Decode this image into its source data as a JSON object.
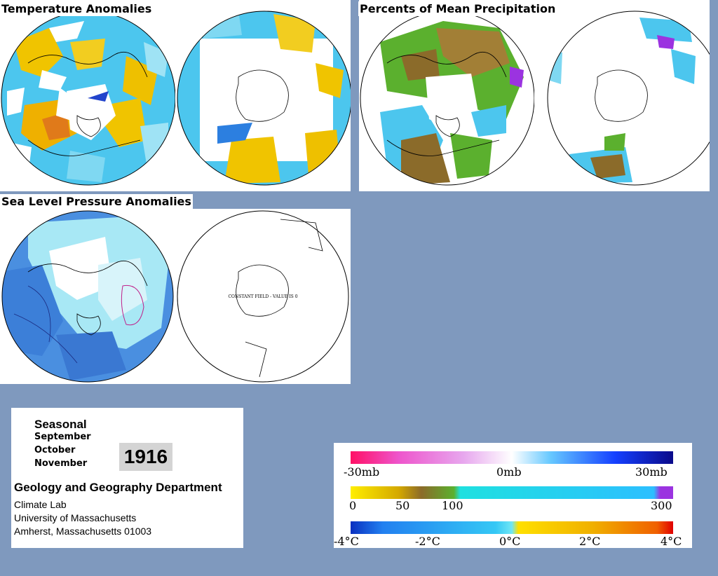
{
  "panels": {
    "temperature_title": "Temperature Anomalies",
    "precip_title": "Percents of Mean Precipitation",
    "slp_title": "Sea Level Pressure Anomalies",
    "constant_field_note": "CONSTANT FIELD - VALUE IS 0"
  },
  "info": {
    "season_label": "Seasonal",
    "months": [
      "September",
      "October",
      "November"
    ],
    "year": "1916",
    "department": "Geology and Geography Department",
    "lab": "Climate Lab",
    "university": "University of Massachusetts",
    "city": "Amherst, Massachusetts 01003"
  },
  "legend": {
    "pressure": {
      "labels": [
        "-30mb",
        "0mb",
        "30mb"
      ]
    },
    "precip": {
      "labels": [
        "0",
        "50",
        "100",
        "300"
      ]
    },
    "temperature": {
      "labels": [
        "-4°C",
        "-2°C",
        "0°C",
        "2°C",
        "4°C"
      ]
    }
  },
  "colors": {
    "background": "#7f99be",
    "anomaly_cyan": "#33ccee",
    "warm_yellow": "#f2c800",
    "warm_orange": "#e07a1a",
    "precip_green": "#5bb02e",
    "precip_brown": "#8b6b2a",
    "pressure_blue": "#4a8fe0"
  }
}
